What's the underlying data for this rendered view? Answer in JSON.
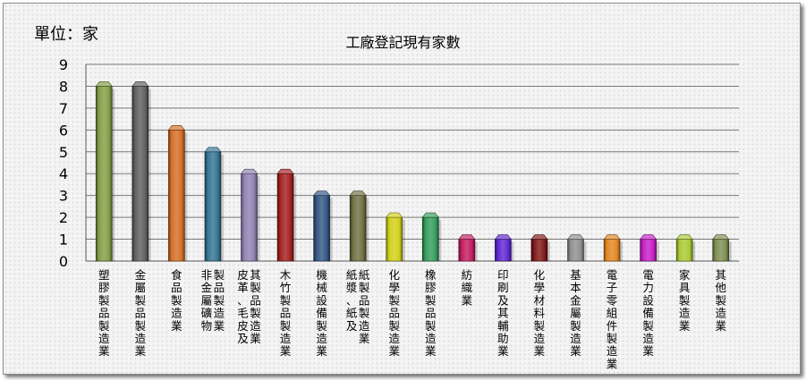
{
  "unit_label": "單位：家",
  "chart_data": {
    "type": "bar",
    "title": "工廠登記現有家數",
    "xlabel": "",
    "ylabel": "",
    "ylim": [
      0,
      9
    ],
    "yticks": [
      0,
      1,
      2,
      3,
      4,
      5,
      6,
      7,
      8,
      9
    ],
    "grid": true,
    "legend": "none",
    "categories": [
      [
        "塑膠製品製造業"
      ],
      [
        "金屬製品製造業"
      ],
      [
        "食品製造業"
      ],
      [
        "非金屬礦物",
        "製品製造業"
      ],
      [
        "皮革、毛皮及",
        "其製品製造業"
      ],
      [
        "木竹製品製造業"
      ],
      [
        "機械設備製造業"
      ],
      [
        "紙漿、紙及",
        "紙製品製造業"
      ],
      [
        "化學製品製造業"
      ],
      [
        "橡膠製品製造業"
      ],
      [
        "紡織業"
      ],
      [
        "印刷及其輔助業"
      ],
      [
        "化學材料製造業"
      ],
      [
        "基本金屬製造業"
      ],
      [
        "電子零組件製造業"
      ],
      [
        "電力設備製造業"
      ],
      [
        "家具製造業"
      ],
      [
        "其他製造業"
      ]
    ],
    "values": [
      8,
      8,
      6,
      5,
      4,
      4,
      3,
      3,
      2,
      2,
      1,
      1,
      1,
      1,
      1,
      1,
      1,
      1
    ],
    "colors": [
      "#7f9a3f",
      "#5a5a5a",
      "#d2691e",
      "#2e6e8e",
      "#8e7cae",
      "#a01818",
      "#2c4f80",
      "#6b6a3a",
      "#cfcf10",
      "#2e9a55",
      "#c0145a",
      "#5a1fd0",
      "#7a1010",
      "#8a8a8a",
      "#e0821a",
      "#c416c4",
      "#a8c82a",
      "#7a8a4a"
    ]
  }
}
